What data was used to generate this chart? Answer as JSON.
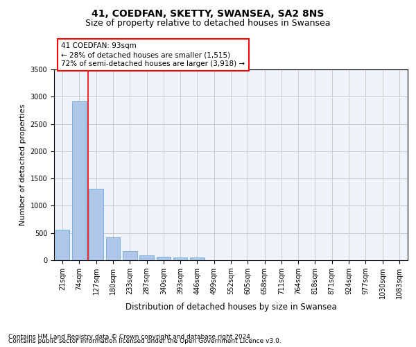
{
  "title1": "41, COEDFAN, SKETTY, SWANSEA, SA2 8NS",
  "title2": "Size of property relative to detached houses in Swansea",
  "xlabel": "Distribution of detached houses by size in Swansea",
  "ylabel": "Number of detached properties",
  "categories": [
    "21sqm",
    "74sqm",
    "127sqm",
    "180sqm",
    "233sqm",
    "287sqm",
    "340sqm",
    "393sqm",
    "446sqm",
    "499sqm",
    "552sqm",
    "605sqm",
    "658sqm",
    "711sqm",
    "764sqm",
    "818sqm",
    "871sqm",
    "924sqm",
    "977sqm",
    "1030sqm",
    "1083sqm"
  ],
  "bar_heights": [
    560,
    2920,
    1310,
    415,
    160,
    90,
    65,
    55,
    45,
    0,
    0,
    0,
    0,
    0,
    0,
    0,
    0,
    0,
    0,
    0,
    0
  ],
  "ylim": [
    0,
    3500
  ],
  "yticks": [
    0,
    500,
    1000,
    1500,
    2000,
    2500,
    3000,
    3500
  ],
  "bar_color": "#aec6e8",
  "bar_edge_color": "#5a9fd4",
  "grid_color": "#cccccc",
  "background_color": "#eef3fb",
  "red_line_x": 1.5,
  "annotation_text": "41 COEDFAN: 93sqm\n← 28% of detached houses are smaller (1,515)\n72% of semi-detached houses are larger (3,918) →",
  "footer1": "Contains HM Land Registry data © Crown copyright and database right 2024.",
  "footer2": "Contains public sector information licensed under the Open Government Licence v3.0.",
  "title1_fontsize": 10,
  "title2_fontsize": 9,
  "xlabel_fontsize": 8.5,
  "ylabel_fontsize": 8,
  "tick_fontsize": 7,
  "annotation_fontsize": 7.5,
  "footer_fontsize": 6.5
}
